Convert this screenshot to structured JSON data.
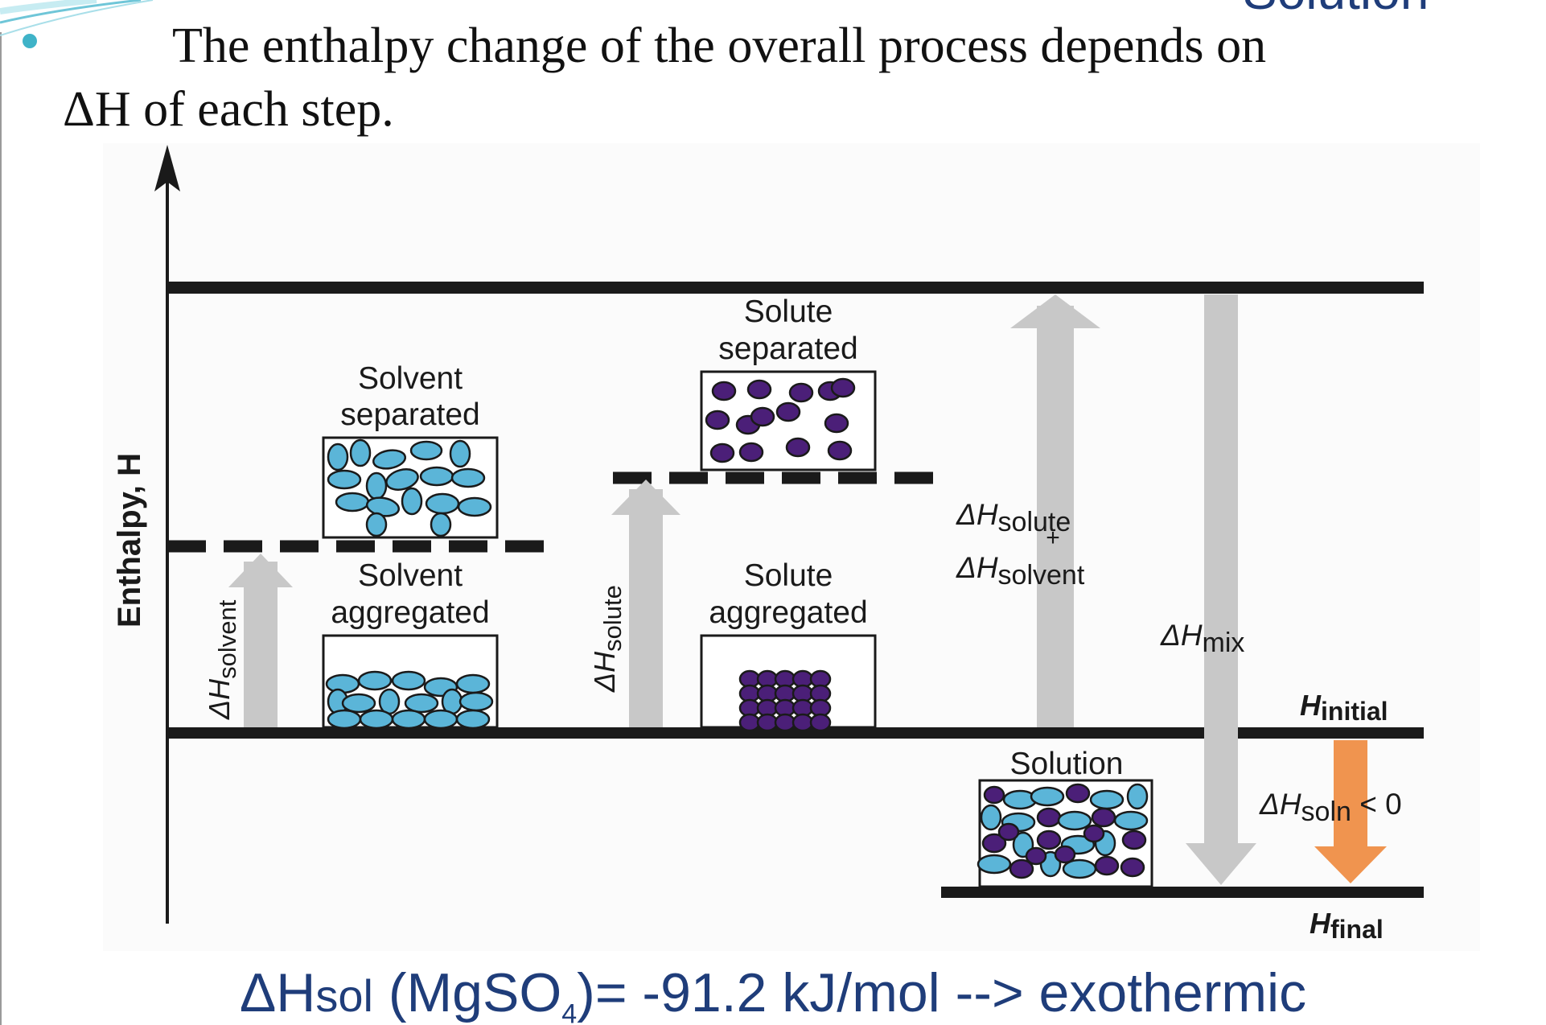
{
  "slide": {
    "corner_title": "Solution",
    "statement_line1": "The enthalpy change of the overall process depends on",
    "statement_delta": "ΔH",
    "statement_rest": " of each step."
  },
  "diagram": {
    "y_axis_label": "Enthalpy, H",
    "solvent_separated": [
      "Solvent",
      "separated"
    ],
    "solvent_aggregated": [
      "Solvent",
      "aggregated"
    ],
    "solute_separated": [
      "Solute",
      "separated"
    ],
    "solute_aggregated": [
      "Solute",
      "aggregated"
    ],
    "solution_label": "Solution",
    "dh_solvent": {
      "main": "ΔH",
      "sub": "solvent"
    },
    "dh_solute": {
      "main": "ΔH",
      "sub": "solute"
    },
    "dh_sum": {
      "l1_main": "ΔH",
      "l1_sub": "solute",
      "plus": "+",
      "l2_main": "ΔH",
      "l2_sub": "solvent"
    },
    "dh_mix": {
      "main": "ΔH",
      "sub": "mix"
    },
    "h_initial": {
      "main": "H",
      "sub": "initial"
    },
    "h_final": {
      "main": "H",
      "sub": "final"
    },
    "dh_soln": {
      "main": "ΔH",
      "sub": "soln",
      "rel": " < 0"
    },
    "colors": {
      "solvent_particle": "#5bb5d8",
      "solute_particle": "#4b1f78",
      "up_arrow": "#c8c8c8",
      "soln_arrow": "#f0944f",
      "level_line": "#1a1a1a"
    }
  },
  "caption": {
    "prefix": "ΔH",
    "sol": "sol",
    "formula_open": " (MgSO",
    "formula_sub": "4",
    "formula_close": ")= -91.2 kJ/mol  --> exothermic"
  }
}
